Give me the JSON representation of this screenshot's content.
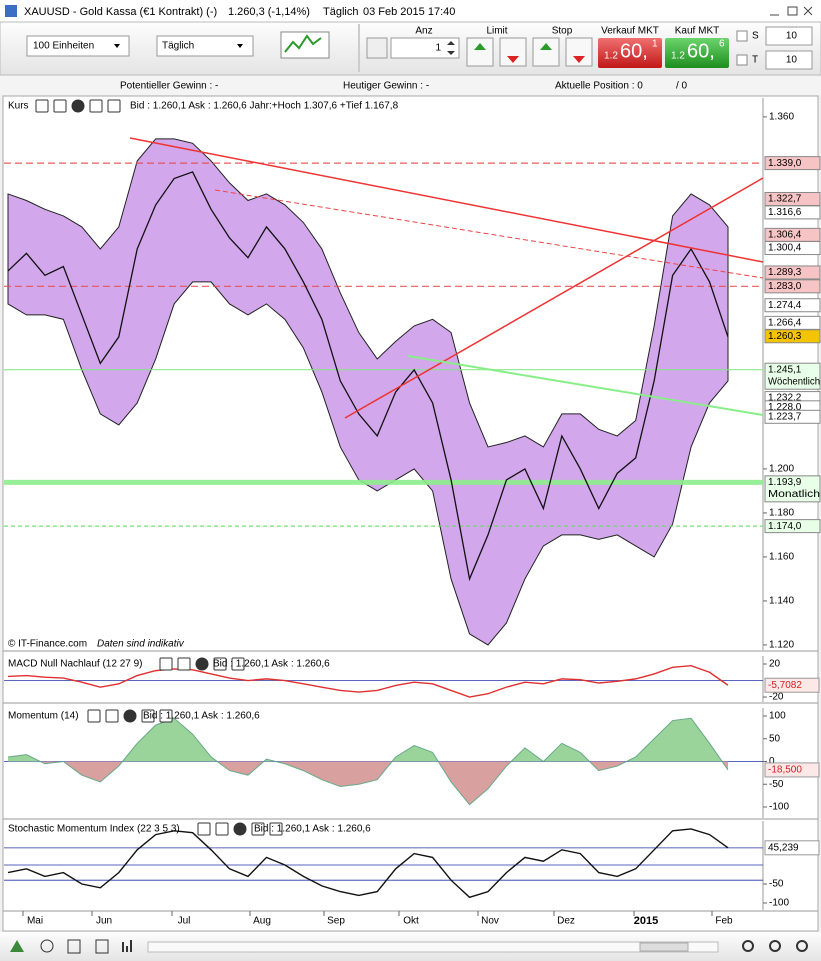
{
  "window": {
    "title": "XAUUSD - Gold Kassa (€1 Kontrakt) (-)",
    "price": "1.260,3 (-1,14%)",
    "interval": "Täglich",
    "datetime": "03 Feb 2015 17:40"
  },
  "toolbar": {
    "units": "100 Einheiten",
    "period": "Täglich",
    "anz_label": "Anz",
    "anz": "1",
    "limit": "Limit",
    "stop": "Stop",
    "sell_label": "Verkauf MKT",
    "sell_small": "1.2",
    "sell_big": "60,",
    "sell_sup": "1",
    "buy_label": "Kauf MKT",
    "buy_small": "1.2",
    "buy_big": "60,",
    "buy_sup": "6",
    "s_label": "S",
    "s_value": "10",
    "t_label": "T",
    "t_value": "10"
  },
  "status": {
    "potential": "Potentieller Gewinn : -",
    "today": "Heutiger Gewinn : -",
    "position": "Aktuelle Position : 0",
    "position2": "/ 0"
  },
  "copyright": "© IT-Finance.com",
  "disclaimer": "Daten sind indikativ",
  "x_labels": [
    "Mai",
    "Jun",
    "Jul",
    "Aug",
    "Sep",
    "Okt",
    "Nov",
    "Dez",
    "2015",
    "Feb"
  ],
  "chart_data": [
    {
      "type": "line",
      "title": "Kurs",
      "subtitle": "Bid : 1.260,1 Ask : 1.260,6 Jahr:+Hoch 1.307,6 +Tief 1.167,8",
      "ylim": [
        1.1177,
        1.3686
      ],
      "yticks": [
        {
          "value": 1.36,
          "label": "1.360"
        },
        {
          "value": 1.2,
          "label": "1.200"
        },
        {
          "value": 1.18,
          "label": "1.180"
        },
        {
          "value": 1.16,
          "label": "1.160"
        },
        {
          "value": 1.14,
          "label": "1.140"
        },
        {
          "value": 1.12,
          "label": "1.120"
        }
      ],
      "band": {
        "color": "#c48ae6",
        "upper": [
          1.325,
          1.322,
          1.318,
          1.315,
          1.31,
          1.3,
          1.31,
          1.34,
          1.35,
          1.35,
          1.348,
          1.34,
          1.33,
          1.322,
          1.325,
          1.32,
          1.312,
          1.3,
          1.28,
          1.262,
          1.25,
          1.258,
          1.265,
          1.268,
          1.262,
          1.23,
          1.21,
          1.212,
          1.215,
          1.21,
          1.225,
          1.225,
          1.218,
          1.215,
          1.222,
          1.265,
          1.315,
          1.325,
          1.32,
          1.31
        ],
        "lower": [
          1.275,
          1.27,
          1.27,
          1.268,
          1.245,
          1.225,
          1.22,
          1.23,
          1.25,
          1.275,
          1.285,
          1.285,
          1.275,
          1.27,
          1.275,
          1.268,
          1.255,
          1.235,
          1.21,
          1.195,
          1.19,
          1.195,
          1.2,
          1.19,
          1.15,
          1.125,
          1.12,
          1.13,
          1.15,
          1.165,
          1.17,
          1.17,
          1.168,
          1.17,
          1.165,
          1.16,
          1.175,
          1.21,
          1.23,
          1.24
        ]
      },
      "series": [
        {
          "color": "#111111",
          "values": [
            1.29,
            1.298,
            1.288,
            1.292,
            1.27,
            1.248,
            1.26,
            1.3,
            1.32,
            1.332,
            1.335,
            1.318,
            1.305,
            1.296,
            1.31,
            1.3,
            1.285,
            1.268,
            1.24,
            1.225,
            1.215,
            1.235,
            1.245,
            1.23,
            1.195,
            1.15,
            1.17,
            1.195,
            1.2,
            1.182,
            1.215,
            1.2,
            1.182,
            1.198,
            1.205,
            1.24,
            1.288,
            1.3,
            1.285,
            1.26
          ]
        }
      ],
      "price_labels": [
        {
          "value": 1.339,
          "label": "1.339,0",
          "bg": "#f6c4c4",
          "line": "#e84a4a",
          "dash": "7 4"
        },
        {
          "value": 1.3227,
          "label": "1.322,7",
          "bg": "#f6c4c4"
        },
        {
          "value": 1.3166,
          "label": "1.316,6",
          "bg": "#ffffff"
        },
        {
          "value": 1.3064,
          "label": "1.306,4",
          "bg": "#f6c4c4"
        },
        {
          "value": 1.3004,
          "label": "1.300,4",
          "bg": "#ffffff"
        },
        {
          "value": 1.2893,
          "label": "1.289,3",
          "bg": "#f6c4c4"
        },
        {
          "value": 1.283,
          "label": "1.283,0",
          "bg": "#f6c4c4",
          "line": "#e84a4a",
          "dash": "7 4"
        },
        {
          "value": 1.2744,
          "label": "1.274,4",
          "bg": "#ffffff"
        },
        {
          "value": 1.2664,
          "label": "1.266,4",
          "bg": "#ffffff"
        },
        {
          "value": 1.2603,
          "label": "1.260,3",
          "bg": "#f5c400"
        },
        {
          "value": 1.2451,
          "label": "1.245,1",
          "note": "Wöchentlich",
          "bg": "#e8ffe8",
          "line": "#7ee87e"
        },
        {
          "value": 1.2322,
          "label": "1.232,2",
          "bg": "#ffffff"
        },
        {
          "value": 1.228,
          "label": "1.228,0",
          "bg": "#ffffff"
        },
        {
          "value": 1.2237,
          "label": "1.223,7",
          "bg": "#ffffff"
        },
        {
          "value": 1.1939,
          "label": "1.193,9",
          "note": "Monatlich",
          "bg": "#e8ffe8",
          "line": "#8cee8c",
          "width": 5
        },
        {
          "value": 1.174,
          "label": "1.174,0",
          "bg": "#e8ffe8",
          "line": "#66dd66",
          "dash": "4 3"
        }
      ]
    },
    {
      "type": "line",
      "title": "MACD Null Nachlauf (12 27 9)",
      "subtitle": "Bid : 1.260,1 Ask : 1.260,6",
      "ylim": [
        -26,
        29.7
      ],
      "yticks": [
        20,
        -20
      ],
      "series": [
        {
          "color": "#e03030",
          "values": [
            5,
            6,
            4,
            3,
            -2,
            -8,
            -4,
            6,
            12,
            14,
            13,
            8,
            3,
            0,
            2,
            0,
            -4,
            -8,
            -12,
            -14,
            -12,
            -6,
            -2,
            -4,
            -12,
            -20,
            -16,
            -8,
            -2,
            -4,
            2,
            1,
            -3,
            -1,
            2,
            8,
            16,
            18,
            10,
            -5.7082
          ],
          "value_labels": {
            "39": "-5,7082"
          }
        }
      ]
    },
    {
      "type": "area",
      "title": "Momentum (14)",
      "subtitle": "Bid : 1.260,1 Ask : 1.260,6",
      "ylim": [
        -124.2,
        117.6
      ],
      "yticks": [
        100,
        50,
        0,
        -50,
        -100
      ],
      "series": [
        {
          "color": "#9ad49a",
          "neg_color": "#d9a0a0",
          "values": [
            10,
            15,
            -5,
            0,
            -30,
            -45,
            -10,
            40,
            80,
            95,
            60,
            10,
            -20,
            -30,
            5,
            -5,
            -20,
            -40,
            -55,
            -50,
            -40,
            10,
            35,
            20,
            -45,
            -95,
            -60,
            -10,
            30,
            0,
            40,
            20,
            -20,
            -10,
            10,
            50,
            90,
            95,
            40,
            -18.5
          ],
          "value_labels": {
            "39": "-18,500"
          }
        }
      ]
    },
    {
      "type": "line",
      "title": "Stochastic Momentum Index (22 3 5 3)",
      "subtitle": "Bid : 1.260,1 Ask : 1.260,6",
      "ylim": [
        -118.4,
        115.8
      ],
      "yticks": [
        -50,
        -100
      ],
      "levels": [
        45,
        -40
      ],
      "series": [
        {
          "color": "#111111",
          "values": [
            -20,
            -10,
            -30,
            -20,
            -50,
            -60,
            -20,
            40,
            80,
            90,
            85,
            40,
            -10,
            -30,
            20,
            0,
            -30,
            -55,
            -70,
            -80,
            -70,
            -10,
            30,
            20,
            -40,
            -85,
            -70,
            -20,
            20,
            10,
            40,
            30,
            -20,
            -30,
            -10,
            40,
            90,
            95,
            80,
            45.239
          ],
          "value_labels": {
            "39": "45,239"
          }
        }
      ]
    }
  ]
}
